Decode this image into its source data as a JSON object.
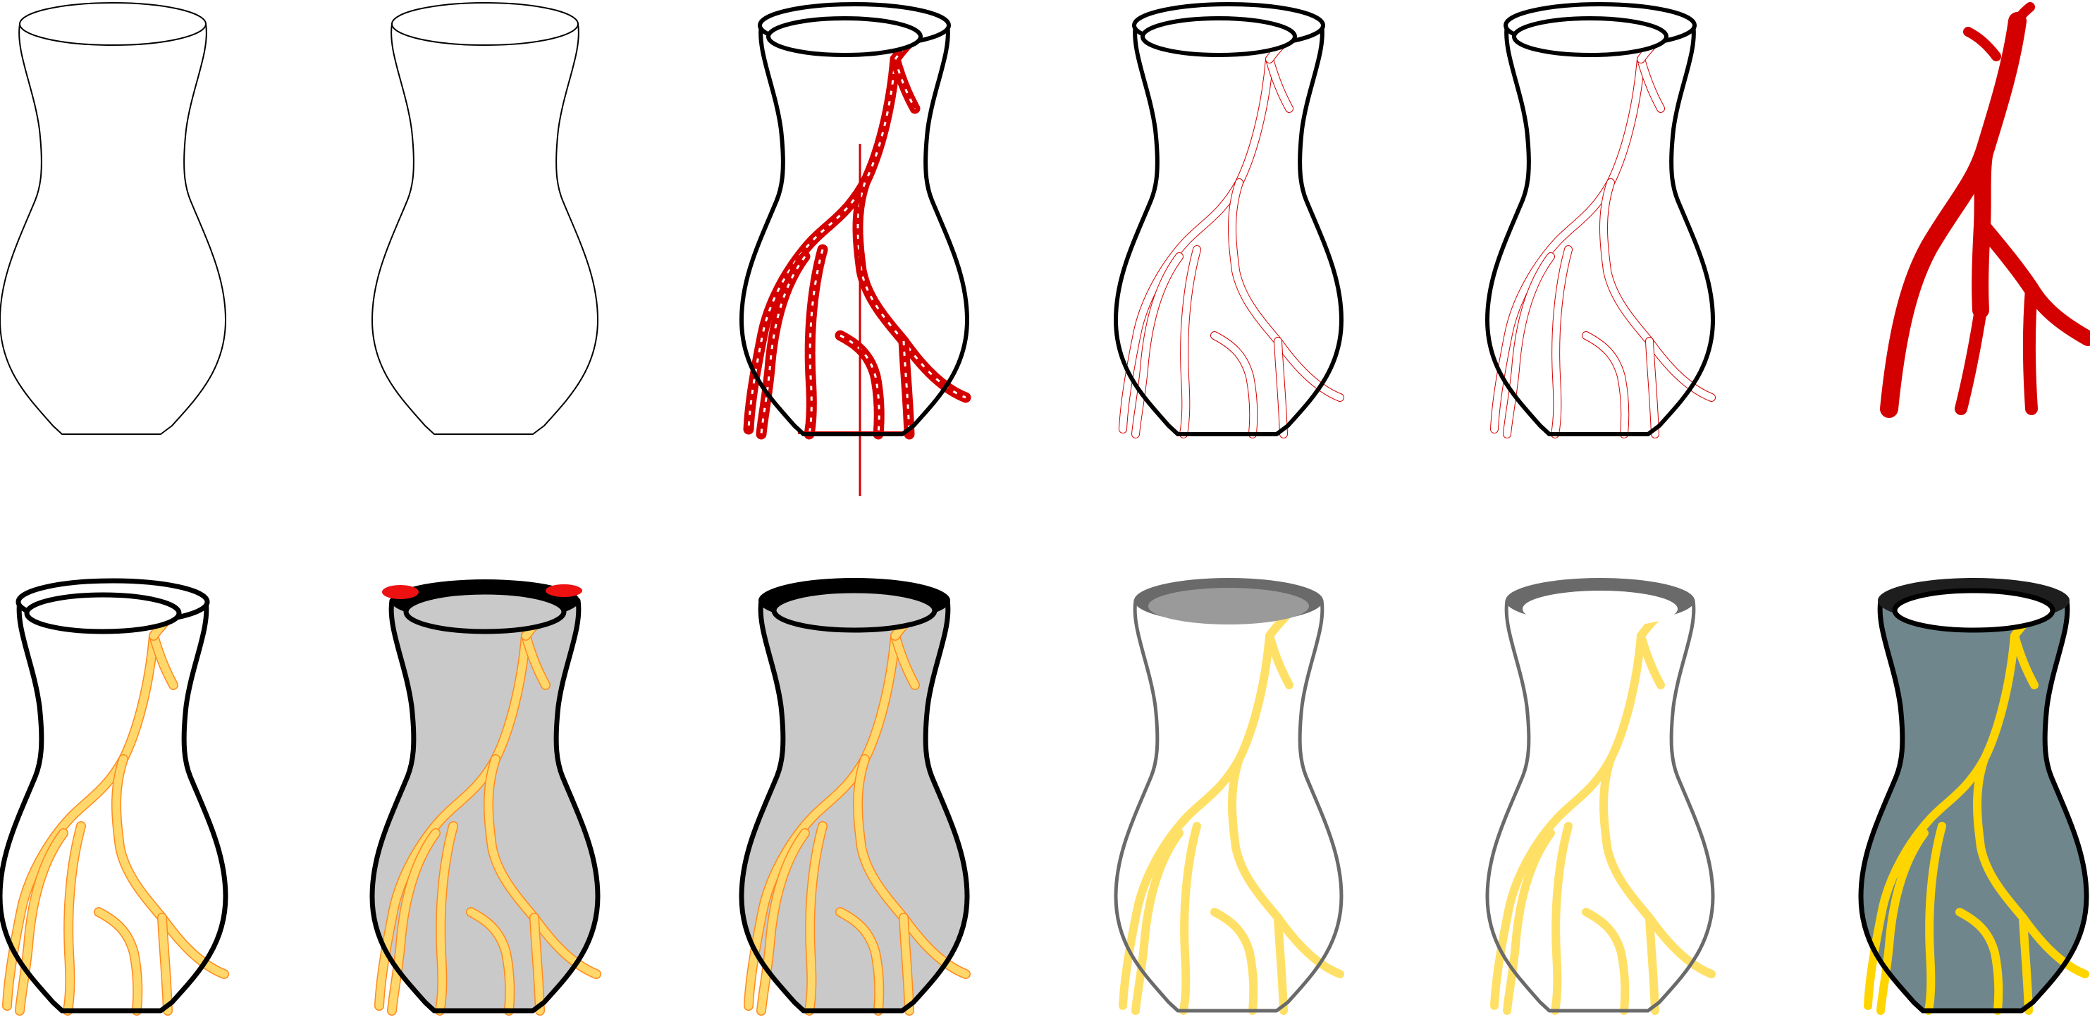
{
  "figure": {
    "rows": [
      {
        "name": "vectorization-stages",
        "panels": [
          {
            "name": "vase-thin-outline",
            "style": "outline-thin",
            "cracks": "none"
          },
          {
            "name": "vase-thin-outline-copy",
            "style": "outline-thin-2",
            "cracks": "none"
          },
          {
            "name": "vase-raster-cracks",
            "style": "outline-bold",
            "cracks": "raster"
          },
          {
            "name": "vase-traced-crack-edges",
            "style": "outline-bold",
            "cracks": "trace"
          },
          {
            "name": "vase-traced-crack-edges-2",
            "style": "outline-bold",
            "cracks": "trace"
          },
          {
            "name": "crack-network-filled",
            "style": "none",
            "cracks": "solid"
          }
        ]
      },
      {
        "name": "gold-crack-renderings",
        "panels": [
          {
            "name": "vase-gold-cracks-white",
            "style": "bold",
            "body": "#ffffff",
            "rim": "black-thin",
            "cracks": "gold-outlined"
          },
          {
            "name": "vase-gold-cracks-grey-red-rim",
            "style": "bold",
            "body": "#c9c9c9",
            "rim": "black-red",
            "cracks": "gold-outlined"
          },
          {
            "name": "vase-gold-cracks-grey",
            "style": "bold",
            "body": "#c9c9c9",
            "rim": "black-thick",
            "cracks": "gold-outlined"
          },
          {
            "name": "vase-gold-cracks-grey-rim",
            "style": "grey",
            "body": "#ffffff",
            "rim": "grey-filled",
            "cracks": "gold-plain"
          },
          {
            "name": "vase-gold-cracks-thin-grey-rim",
            "style": "grey",
            "body": "#ffffff",
            "rim": "grey-ring",
            "cracks": "gold-plain"
          },
          {
            "name": "vase-gold-cracks-slate",
            "style": "bold",
            "body": "#6f868d",
            "rim": "dark-ring",
            "cracks": "gold-bright"
          }
        ]
      }
    ],
    "colors": {
      "outline": "#000000",
      "crack_red": "#d40000",
      "gold_fill": "#ffd76a",
      "gold_edge": "#ff8a1e",
      "gold_bright": "#ffd500",
      "gold_plain": "#ffe066",
      "grey_body": "#c9c9c9",
      "grey_outline": "#6a6a6a",
      "rim_grey_fill": "#9a9a9a",
      "rim_red": "#ee1111",
      "slate_body": "#6f868d",
      "dark_rim": "#1e1e1e"
    }
  }
}
